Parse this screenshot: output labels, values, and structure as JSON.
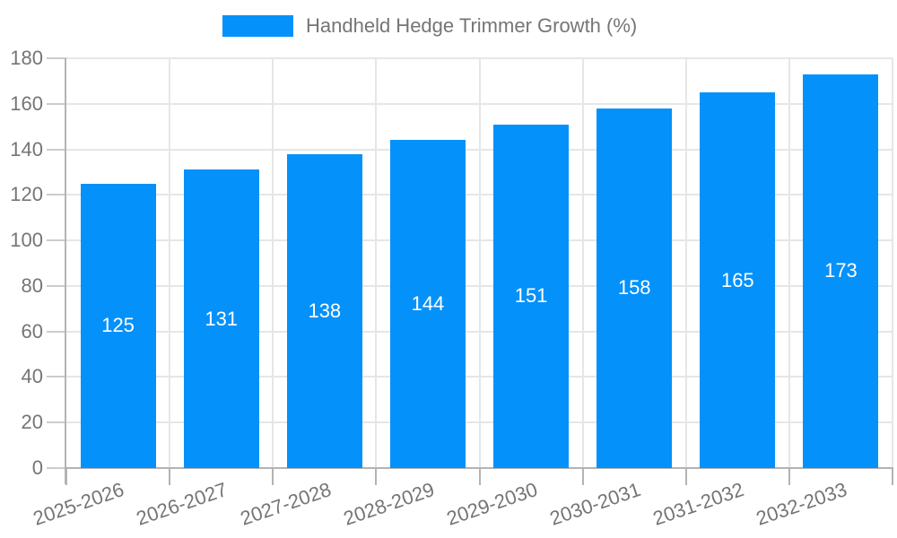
{
  "legend": {
    "label": "Handheld Hedge Trimmer Growth (%)"
  },
  "chart_data": {
    "type": "bar",
    "title": "Handheld Hedge Trimmer Growth (%)",
    "categories": [
      "2025-2026",
      "2026-2027",
      "2027-2028",
      "2028-2029",
      "2029-2030",
      "2030-2031",
      "2031-2032",
      "2032-2033"
    ],
    "values": [
      125,
      131,
      138,
      144,
      151,
      158,
      165,
      173
    ],
    "xlabel": "",
    "ylabel": "",
    "ylim": [
      0,
      180
    ],
    "ytick_step": 20,
    "yticks": [
      0,
      20,
      40,
      60,
      80,
      100,
      120,
      140,
      160,
      180
    ],
    "grid": true,
    "legend_position": "top",
    "value_labels": "inside-center",
    "colors": {
      "bar": "#0591fa",
      "value_label": "#ffffff",
      "axis_text": "#757575",
      "axis_line": "#b3b3b3",
      "gridline": "#e6e6e6",
      "y_tick": "#cccccc",
      "x_tick": "#b3b3b3",
      "background": "#ffffff"
    }
  }
}
